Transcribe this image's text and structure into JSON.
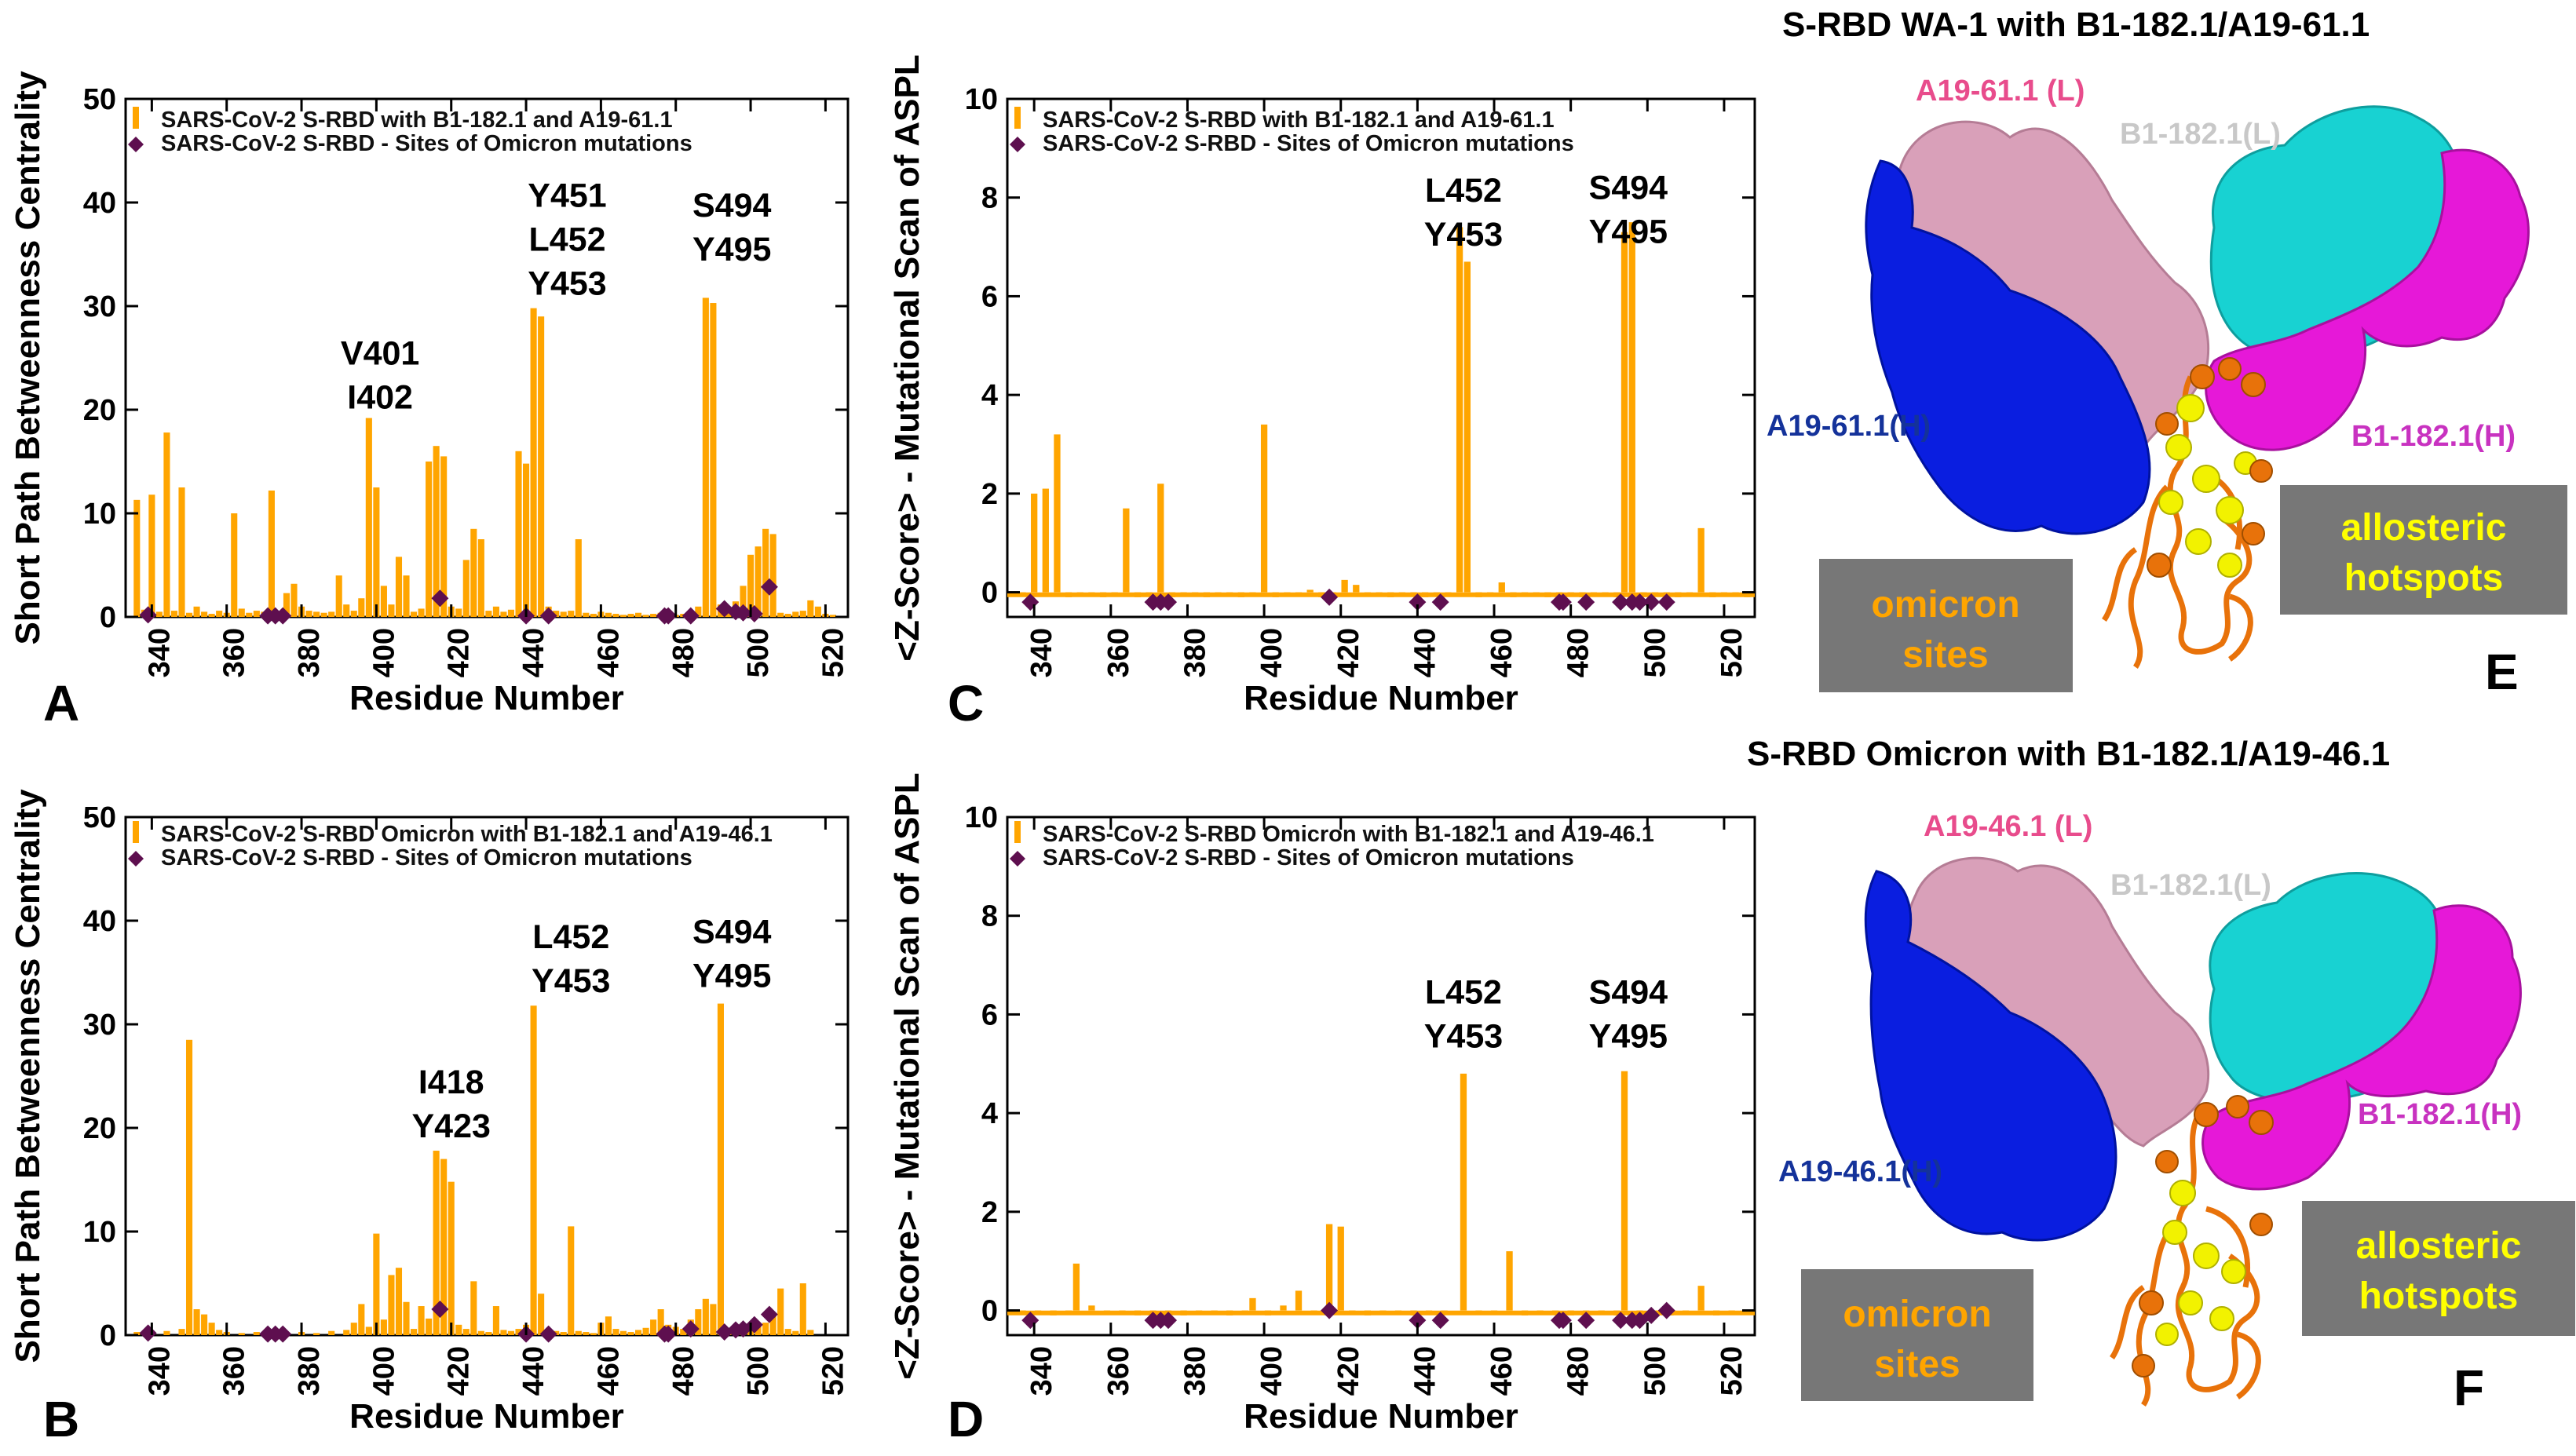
{
  "colors": {
    "bar": "#FFA500",
    "marker": "#5E0F4F",
    "axis": "#000000",
    "antibody_heavy": "#0A1EE0",
    "antibody_light": "#D9A0B9",
    "nanobody": "#18D2D2",
    "nanobody_heavy": "#E618D8",
    "rbd": "#E8720A",
    "hotspot": "#F2F200",
    "box_bg": "#777777",
    "box_text_omicron": "#FFA500",
    "box_text_allosteric": "#FFFF00",
    "label_heavy": "#14329A",
    "label_light": "#E84C8C",
    "label_nano_light": "#C8C8C8",
    "label_nano_heavy": "#C832C0"
  },
  "chart_data": [
    {
      "id": "A",
      "type": "bar",
      "panel_letter": "A",
      "xlabel": "Residue Number",
      "ylabel": "Short Path Betweenness Centrality",
      "xlim": [
        333,
        526
      ],
      "ylim": [
        0,
        50
      ],
      "xticks": [
        340,
        360,
        380,
        400,
        420,
        440,
        460,
        480,
        500,
        520
      ],
      "yticks": [
        0,
        10,
        20,
        30,
        40,
        50
      ],
      "legend_position": "top",
      "series": [
        {
          "name": "SARS-CoV-2 S-RBD  with B1-182.1 and A19-61.1",
          "kind": "bar",
          "x": [
            336,
            338,
            340,
            342,
            344,
            346,
            348,
            350,
            352,
            354,
            356,
            358,
            360,
            362,
            364,
            366,
            368,
            370,
            372,
            374,
            376,
            378,
            380,
            382,
            384,
            386,
            388,
            390,
            392,
            394,
            396,
            398,
            400,
            402,
            404,
            406,
            408,
            410,
            412,
            414,
            416,
            418,
            420,
            422,
            424,
            426,
            428,
            430,
            432,
            434,
            436,
            438,
            440,
            442,
            444,
            446,
            448,
            450,
            452,
            454,
            456,
            458,
            460,
            462,
            464,
            466,
            468,
            470,
            472,
            474,
            476,
            478,
            480,
            482,
            484,
            486,
            488,
            490,
            492,
            494,
            496,
            498,
            500,
            502,
            504,
            506,
            508,
            510,
            512,
            514,
            516,
            518,
            520,
            522
          ],
          "values": [
            11.3,
            0.7,
            11.8,
            0.5,
            17.8,
            0.6,
            12.5,
            0.4,
            1.0,
            0.5,
            0.3,
            0.6,
            0.4,
            10.0,
            0.8,
            0.4,
            0.6,
            0.5,
            12.2,
            0.5,
            2.3,
            3.2,
            1.0,
            0.6,
            0.5,
            0.4,
            0.5,
            4.0,
            1.2,
            0.6,
            1.8,
            19.2,
            12.5,
            3.0,
            1.2,
            5.8,
            4.0,
            0.5,
            0.8,
            15.0,
            16.5,
            15.5,
            1.0,
            0.8,
            5.5,
            8.5,
            7.5,
            0.6,
            1.0,
            0.5,
            0.7,
            16.0,
            14.8,
            29.8,
            29.0,
            1.0,
            0.6,
            0.5,
            0.6,
            7.5,
            0.4,
            0.3,
            0.5,
            0.4,
            0.3,
            0.2,
            0.3,
            0.4,
            0.2,
            0.3,
            0.4,
            0.5,
            0.2,
            0.3,
            0.6,
            1.0,
            30.8,
            30.3,
            1.2,
            0.6,
            1.5,
            3.0,
            6.0,
            6.8,
            8.5,
            8.0,
            0.4,
            0.3,
            0.5,
            0.6,
            1.6,
            1.0,
            0.3,
            0.2
          ]
        },
        {
          "name": "SARS-CoV-2 S-RBD - Sites of Omicron mutations",
          "kind": "marker",
          "x": [
            339,
            371,
            373,
            375,
            417,
            440,
            446,
            477,
            478,
            484,
            493,
            496,
            498,
            501,
            505
          ],
          "values": [
            0.2,
            0.1,
            0.1,
            0.1,
            1.8,
            0.1,
            0.1,
            0.1,
            0.1,
            0.1,
            0.8,
            0.5,
            0.4,
            0.3,
            2.9
          ]
        }
      ],
      "annotations": [
        {
          "lines": [
            "V401",
            "I402"
          ],
          "x": 401,
          "y": 19.5
        },
        {
          "lines": [
            "Y451",
            "L452",
            "Y453"
          ],
          "x": 451,
          "y": 30.5
        },
        {
          "lines": [
            "S494",
            "Y495"
          ],
          "x": 495,
          "y": 33.8
        }
      ]
    },
    {
      "id": "B",
      "type": "bar",
      "panel_letter": "B",
      "xlabel": "Residue Number",
      "ylabel": "Short Path Betweenness Centrality",
      "xlim": [
        333,
        526
      ],
      "ylim": [
        0,
        50
      ],
      "xticks": [
        340,
        360,
        380,
        400,
        420,
        440,
        460,
        480,
        500,
        520
      ],
      "yticks": [
        0,
        10,
        20,
        30,
        40,
        50
      ],
      "legend_position": "top",
      "series": [
        {
          "name": "SARS-CoV-2 S-RBD  Omicron with B1-182.1 and A19-46.1",
          "kind": "bar",
          "x": [
            336,
            340,
            344,
            348,
            350,
            352,
            354,
            356,
            358,
            360,
            364,
            368,
            372,
            376,
            380,
            384,
            388,
            392,
            394,
            396,
            398,
            400,
            402,
            404,
            406,
            408,
            410,
            412,
            414,
            416,
            418,
            420,
            422,
            424,
            426,
            428,
            430,
            432,
            434,
            436,
            438,
            440,
            442,
            444,
            446,
            448,
            450,
            452,
            454,
            456,
            458,
            460,
            462,
            464,
            466,
            468,
            470,
            472,
            474,
            476,
            478,
            480,
            482,
            484,
            486,
            488,
            490,
            492,
            494,
            496,
            498,
            500,
            502,
            504,
            506,
            508,
            510,
            512,
            514,
            516
          ],
          "values": [
            0.3,
            0.2,
            0.4,
            0.6,
            28.5,
            2.5,
            2.0,
            1.2,
            0.5,
            0.3,
            0.2,
            0.3,
            0.4,
            0.2,
            0.3,
            0.2,
            0.4,
            0.5,
            1.2,
            3.0,
            0.8,
            9.8,
            1.5,
            5.8,
            6.5,
            3.2,
            0.6,
            2.8,
            1.6,
            17.8,
            17.0,
            14.8,
            1.0,
            0.6,
            5.2,
            0.4,
            0.3,
            2.8,
            0.5,
            0.4,
            0.6,
            1.0,
            31.8,
            4.0,
            0.6,
            0.4,
            0.3,
            10.5,
            0.4,
            0.3,
            0.2,
            1.2,
            1.8,
            0.6,
            0.4,
            0.3,
            0.5,
            0.7,
            1.5,
            2.5,
            1.0,
            0.8,
            0.6,
            1.5,
            2.5,
            3.5,
            3.0,
            32.0,
            0.6,
            0.4,
            0.5,
            0.8,
            1.0,
            1.2,
            2.0,
            4.5,
            0.6,
            0.4,
            5.0,
            0.5
          ]
        },
        {
          "name": "SARS-CoV-2 S-RBD - Sites of Omicron mutations",
          "kind": "marker",
          "x": [
            339,
            371,
            373,
            375,
            417,
            440,
            446,
            477,
            478,
            484,
            493,
            496,
            498,
            501,
            505
          ],
          "values": [
            0.2,
            0.1,
            0.1,
            0.1,
            2.5,
            0.1,
            0.1,
            0.1,
            0.1,
            0.6,
            0.3,
            0.5,
            0.6,
            1.0,
            2.0
          ]
        }
      ],
      "annotations": [
        {
          "lines": [
            "I418",
            "Y423"
          ],
          "x": 420,
          "y": 18.5
        },
        {
          "lines": [
            "L452",
            "Y453"
          ],
          "x": 452,
          "y": 32.5
        },
        {
          "lines": [
            "S494",
            "Y495"
          ],
          "x": 495,
          "y": 33.0
        }
      ]
    },
    {
      "id": "C",
      "type": "bar",
      "panel_letter": "C",
      "xlabel": "Residue Number",
      "ylabel": "<Z-Score> - Mutational Scan of ASPL",
      "xlim": [
        333,
        528
      ],
      "ylim": [
        -0.5,
        10
      ],
      "xticks": [
        340,
        360,
        380,
        400,
        420,
        440,
        460,
        480,
        500,
        520
      ],
      "yticks": [
        0,
        2,
        4,
        6,
        8,
        10
      ],
      "legend_position": "top",
      "series": [
        {
          "name": "SARS-CoV-2 S-RBD  with B1-182.1 and A19-61.1",
          "kind": "bar",
          "x": [
            337,
            340,
            343,
            346,
            349,
            352,
            355,
            358,
            361,
            364,
            367,
            370,
            373,
            376,
            379,
            382,
            385,
            388,
            391,
            394,
            397,
            400,
            403,
            406,
            409,
            412,
            415,
            418,
            421,
            424,
            427,
            430,
            433,
            436,
            439,
            442,
            445,
            448,
            451,
            453,
            456,
            459,
            462,
            465,
            468,
            471,
            474,
            477,
            480,
            483,
            486,
            489,
            492,
            494,
            496,
            499,
            502,
            505,
            508,
            511,
            514,
            517,
            520,
            523,
            526
          ],
          "values": [
            -0.05,
            2.0,
            2.1,
            3.2,
            -0.1,
            -0.05,
            0.0,
            -0.1,
            -0.05,
            1.7,
            -0.1,
            -0.05,
            2.2,
            -0.1,
            0.0,
            -0.05,
            -0.1,
            -0.05,
            0.0,
            -0.1,
            -0.05,
            3.4,
            -0.1,
            -0.05,
            0.0,
            0.05,
            -0.1,
            0.0,
            0.25,
            0.15,
            -0.05,
            0.0,
            -0.1,
            -0.05,
            0.0,
            -0.1,
            -0.05,
            0.0,
            7.4,
            6.7,
            -0.1,
            -0.05,
            0.2,
            -0.1,
            -0.05,
            0.0,
            -0.1,
            -0.05,
            0.0,
            -0.1,
            -0.05,
            0.0,
            -0.1,
            7.3,
            7.5,
            -0.1,
            -0.05,
            0.0,
            -0.1,
            -0.05,
            1.3,
            -0.1,
            -0.05,
            0.0,
            -0.1
          ]
        },
        {
          "name": "SARS-CoV-2 S-RBD - Sites of Omicron mutations",
          "kind": "marker",
          "x": [
            339,
            371,
            373,
            375,
            417,
            440,
            446,
            477,
            478,
            484,
            493,
            496,
            498,
            501,
            505
          ],
          "values": [
            -0.2,
            -0.2,
            -0.2,
            -0.2,
            -0.1,
            -0.2,
            -0.2,
            -0.2,
            -0.2,
            -0.2,
            -0.2,
            -0.2,
            -0.2,
            -0.2,
            -0.2
          ]
        }
      ],
      "annotations": [
        {
          "lines": [
            "L452",
            "Y453"
          ],
          "x": 452,
          "y": 6.9
        },
        {
          "lines": [
            "S494",
            "Y495"
          ],
          "x": 495,
          "y": 6.95
        }
      ]
    },
    {
      "id": "D",
      "type": "bar",
      "panel_letter": "D",
      "xlabel": "Residue Number",
      "ylabel": "<Z-Score> - Mutational Scan of ASPL",
      "xlim": [
        333,
        528
      ],
      "ylim": [
        -0.5,
        10
      ],
      "xticks": [
        340,
        360,
        380,
        400,
        420,
        440,
        460,
        480,
        500,
        520
      ],
      "yticks": [
        0,
        2,
        4,
        6,
        8,
        10
      ],
      "legend_position": "top",
      "series": [
        {
          "name": "SARS-CoV-2 S-RBD  Omicron with B1-182.1 and A19-46.1",
          "kind": "bar",
          "x": [
            337,
            341,
            345,
            349,
            351,
            355,
            359,
            363,
            367,
            371,
            375,
            379,
            383,
            387,
            391,
            395,
            397,
            401,
            405,
            409,
            413,
            417,
            420,
            423,
            427,
            431,
            435,
            439,
            443,
            447,
            452,
            456,
            460,
            464,
            468,
            472,
            476,
            480,
            484,
            488,
            492,
            494,
            498,
            502,
            506,
            510,
            514,
            518,
            522,
            526
          ],
          "values": [
            -0.05,
            0.0,
            -0.1,
            -0.05,
            0.95,
            0.1,
            -0.05,
            0.0,
            -0.1,
            -0.05,
            0.0,
            -0.1,
            -0.05,
            0.0,
            -0.1,
            -0.05,
            0.25,
            -0.1,
            0.1,
            0.4,
            -0.05,
            1.75,
            1.7,
            0.0,
            -0.1,
            -0.05,
            0.0,
            -0.1,
            -0.05,
            0.0,
            4.8,
            -0.05,
            0.0,
            1.2,
            -0.1,
            -0.05,
            0.0,
            -0.1,
            -0.05,
            0.0,
            -0.1,
            4.85,
            -0.05,
            0.0,
            -0.1,
            -0.05,
            0.5,
            -0.1,
            -0.05,
            0.0
          ]
        },
        {
          "name": "SARS-CoV-2 S-RBD - Sites of Omicron mutations",
          "kind": "marker",
          "x": [
            339,
            371,
            373,
            375,
            417,
            440,
            446,
            477,
            478,
            484,
            493,
            496,
            498,
            501,
            505
          ],
          "values": [
            -0.2,
            -0.2,
            -0.2,
            -0.2,
            0.0,
            -0.2,
            -0.2,
            -0.2,
            -0.2,
            -0.2,
            -0.2,
            -0.2,
            -0.2,
            -0.1,
            0.0
          ]
        }
      ],
      "annotations": [
        {
          "lines": [
            "L452",
            "Y453"
          ],
          "x": 452,
          "y": 5.2
        },
        {
          "lines": [
            "S494",
            "Y495"
          ],
          "x": 495,
          "y": 5.2
        }
      ]
    }
  ],
  "structures": [
    {
      "id": "E",
      "title": "S-RBD WA-1 with  B1-182.1/A19-61.1",
      "panel_letter": "E",
      "label_antibody_light": "A19-61.1 (L)",
      "label_nanobody_light": "B1-182.1(L)",
      "label_antibody_heavy": "A19-61.1(H)",
      "label_nanobody_heavy": "B1-182.1(H)",
      "box_omicron": [
        "omicron",
        "sites"
      ],
      "box_allosteric": [
        "allosteric",
        "hotspots"
      ]
    },
    {
      "id": "F",
      "title": "S-RBD Omicron with  B1-182.1/A19-46.1",
      "panel_letter": "F",
      "label_antibody_light": "A19-46.1 (L)",
      "label_nanobody_light": "B1-182.1(L)",
      "label_antibody_heavy": "A19-46.1(H)",
      "label_nanobody_heavy": "B1-182.1(H)",
      "box_omicron": [
        "omicron",
        "sites"
      ],
      "box_allosteric": [
        "allosteric",
        "hotspots"
      ]
    }
  ]
}
